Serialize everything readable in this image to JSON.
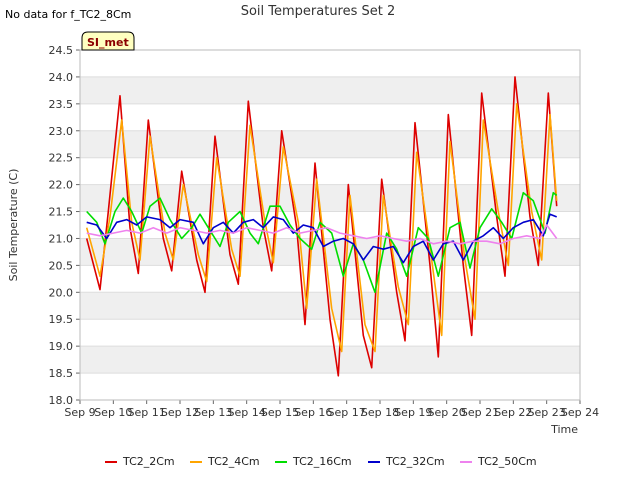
{
  "no_data_note": "No data for f_TC2_8Cm",
  "badge": "SI_met",
  "chart_data": {
    "type": "line",
    "title": "Soil Temperatures Set 2",
    "xlabel": "Time",
    "ylabel": "Soil Temperature (C)",
    "ylim": [
      18.0,
      24.5
    ],
    "xlim": [
      9,
      24
    ],
    "yticks": [
      "18.0",
      "18.5",
      "19.0",
      "19.5",
      "20.0",
      "20.5",
      "21.0",
      "21.5",
      "22.0",
      "22.5",
      "23.0",
      "23.5",
      "24.0",
      "24.5"
    ],
    "xticks": [
      "Sep 9",
      "Sep 10",
      "Sep 11",
      "Sep 12",
      "Sep 13",
      "Sep 14",
      "Sep 15",
      "Sep 16",
      "Sep 17",
      "Sep 18",
      "Sep 19",
      "Sep 20",
      "Sep 21",
      "Sep 22",
      "Sep 23",
      "Sep 24"
    ],
    "grid": true,
    "legend_position": "bottom",
    "series": [
      {
        "name": "TC2_2Cm",
        "color": "#dd0000",
        "x": [
          9.2,
          9.6,
          9.85,
          10.2,
          10.5,
          10.75,
          11.05,
          11.5,
          11.75,
          12.05,
          12.5,
          12.75,
          13.05,
          13.5,
          13.75,
          14.05,
          14.5,
          14.75,
          15.05,
          15.5,
          15.75,
          16.05,
          16.5,
          16.75,
          17.05,
          17.5,
          17.75,
          18.05,
          18.5,
          18.75,
          19.05,
          19.5,
          19.75,
          20.05,
          20.5,
          20.75,
          21.05,
          21.5,
          21.75,
          22.05,
          22.5,
          22.75,
          23.05,
          23.3
        ],
        "y": [
          21.0,
          20.05,
          21.5,
          23.65,
          21.2,
          20.35,
          23.2,
          21.0,
          20.4,
          22.25,
          20.6,
          20.0,
          22.9,
          20.7,
          20.15,
          23.55,
          21.2,
          20.4,
          23.0,
          21.2,
          19.4,
          22.4,
          19.5,
          18.45,
          22.0,
          19.2,
          18.6,
          22.1,
          20.0,
          19.1,
          23.15,
          20.5,
          18.8,
          23.3,
          20.5,
          19.2,
          23.7,
          21.4,
          20.3,
          24.0,
          21.4,
          20.5,
          23.7,
          21.6
        ]
      },
      {
        "name": "TC2_4Cm",
        "color": "#ffa500",
        "x": [
          9.2,
          9.6,
          9.9,
          10.25,
          10.55,
          10.8,
          11.1,
          11.55,
          11.8,
          12.1,
          12.55,
          12.8,
          13.1,
          13.55,
          13.8,
          14.1,
          14.55,
          14.8,
          15.1,
          15.55,
          15.8,
          16.1,
          16.55,
          16.85,
          17.1,
          17.55,
          17.85,
          18.1,
          18.55,
          18.85,
          19.1,
          19.55,
          19.85,
          20.1,
          20.55,
          20.85,
          21.1,
          21.55,
          21.85,
          22.1,
          22.55,
          22.85,
          23.1,
          23.3
        ],
        "y": [
          21.2,
          20.3,
          21.4,
          23.2,
          21.3,
          20.6,
          22.9,
          21.1,
          20.6,
          22.0,
          20.7,
          20.2,
          22.5,
          20.8,
          20.3,
          23.1,
          21.3,
          20.55,
          22.7,
          21.3,
          19.7,
          22.1,
          19.7,
          18.9,
          21.8,
          19.4,
          18.9,
          21.8,
          20.1,
          19.4,
          22.6,
          20.6,
          19.2,
          22.8,
          20.6,
          19.5,
          23.2,
          21.5,
          20.5,
          23.5,
          21.5,
          20.6,
          23.3,
          21.7
        ]
      },
      {
        "name": "TC2_16Cm",
        "color": "#00dd00",
        "x": [
          9.2,
          9.5,
          9.75,
          10.05,
          10.3,
          10.55,
          10.85,
          11.1,
          11.4,
          11.7,
          12.05,
          12.35,
          12.6,
          12.9,
          13.2,
          13.45,
          13.8,
          14.1,
          14.35,
          14.7,
          15.0,
          15.3,
          15.6,
          15.95,
          16.2,
          16.55,
          16.9,
          17.2,
          17.5,
          17.85,
          18.2,
          18.5,
          18.8,
          19.15,
          19.45,
          19.75,
          20.1,
          20.4,
          20.7,
          21.0,
          21.35,
          21.65,
          21.95,
          22.3,
          22.6,
          22.95,
          23.2,
          23.3
        ],
        "y": [
          21.5,
          21.3,
          20.9,
          21.5,
          21.75,
          21.5,
          21.1,
          21.6,
          21.75,
          21.35,
          21.0,
          21.2,
          21.45,
          21.15,
          20.85,
          21.3,
          21.5,
          21.1,
          20.9,
          21.6,
          21.6,
          21.25,
          21.0,
          20.8,
          21.3,
          21.1,
          20.3,
          20.9,
          20.6,
          20.0,
          21.1,
          20.8,
          20.3,
          21.2,
          21.0,
          20.3,
          21.2,
          21.3,
          20.45,
          21.2,
          21.55,
          21.3,
          21.0,
          21.85,
          21.7,
          21.1,
          21.85,
          21.8
        ]
      },
      {
        "name": "TC2_32Cm",
        "color": "#0000cc",
        "x": [
          9.2,
          9.5,
          9.8,
          10.1,
          10.4,
          10.7,
          11.0,
          11.4,
          11.7,
          12.0,
          12.4,
          12.7,
          13.0,
          13.3,
          13.6,
          13.9,
          14.2,
          14.5,
          14.8,
          15.1,
          15.4,
          15.7,
          16.0,
          16.3,
          16.6,
          16.9,
          17.2,
          17.5,
          17.8,
          18.1,
          18.4,
          18.7,
          19.0,
          19.3,
          19.6,
          19.9,
          20.2,
          20.5,
          20.8,
          21.1,
          21.4,
          21.7,
          22.0,
          22.3,
          22.6,
          22.9,
          23.1,
          23.3
        ],
        "y": [
          21.3,
          21.25,
          21.0,
          21.3,
          21.35,
          21.25,
          21.4,
          21.35,
          21.2,
          21.35,
          21.3,
          20.9,
          21.2,
          21.3,
          21.1,
          21.3,
          21.35,
          21.2,
          21.4,
          21.35,
          21.1,
          21.25,
          21.2,
          20.85,
          20.95,
          21.0,
          20.9,
          20.6,
          20.85,
          20.8,
          20.85,
          20.55,
          20.85,
          20.95,
          20.6,
          20.9,
          20.95,
          20.6,
          20.95,
          21.05,
          21.2,
          21.0,
          21.2,
          21.3,
          21.35,
          21.05,
          21.45,
          21.4
        ]
      },
      {
        "name": "TC2_50Cm",
        "color": "#ee82ee",
        "x": [
          9.2,
          9.6,
          10.0,
          10.4,
          10.8,
          11.2,
          11.6,
          12.0,
          12.4,
          12.8,
          13.2,
          13.6,
          14.0,
          14.4,
          14.8,
          15.2,
          15.6,
          16.0,
          16.4,
          16.8,
          17.2,
          17.6,
          18.0,
          18.4,
          18.8,
          19.2,
          19.6,
          20.0,
          20.4,
          20.8,
          21.2,
          21.6,
          22.0,
          22.4,
          22.8,
          23.0,
          23.3
        ],
        "y": [
          21.1,
          21.05,
          21.1,
          21.15,
          21.1,
          21.2,
          21.1,
          21.2,
          21.15,
          21.1,
          21.15,
          21.1,
          21.2,
          21.15,
          21.1,
          21.2,
          21.1,
          21.15,
          21.2,
          21.1,
          21.05,
          21.0,
          21.05,
          21.0,
          20.95,
          21.0,
          20.9,
          20.95,
          20.9,
          20.95,
          20.95,
          20.9,
          21.0,
          21.05,
          21.0,
          21.25,
          21.0
        ]
      }
    ]
  }
}
